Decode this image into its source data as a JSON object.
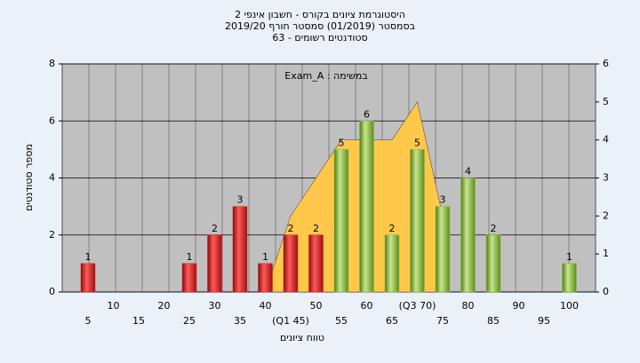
{
  "chart_data": {
    "type": "bar",
    "title": "היסטוגרמת ציונים בקורס - חשבון אינפי 2",
    "subtitle": [
      "בסמסטר (01/2019) סמסטר חורף 2019/20",
      "סטודנטים רשומים - 63"
    ],
    "annotation": "במשימה : Exam_A",
    "y_label": "מספר סטודנטים",
    "x_label": "טווח ציונים",
    "categories": [
      "5",
      "10",
      "15",
      "20",
      "25",
      "30",
      "35",
      "40",
      "(Q1 45)",
      "50",
      "55",
      "60",
      "65",
      "(Q3 70)",
      "75",
      "80",
      "85",
      "90",
      "95",
      "100"
    ],
    "series": [
      {
        "color": "#d42020",
        "values": [
          1,
          0,
          0,
          0,
          1,
          2,
          3,
          1,
          2,
          2,
          null,
          null,
          null,
          null,
          null,
          null,
          null,
          null,
          null,
          null
        ]
      },
      {
        "color": "#8dbd3c",
        "values": [
          null,
          null,
          null,
          null,
          null,
          null,
          null,
          null,
          null,
          null,
          5,
          6,
          2,
          5,
          3,
          4,
          2,
          0,
          0,
          1
        ]
      },
      {
        "type": "area",
        "axis": "y2",
        "color": "#ffc84a",
        "values": [
          null,
          null,
          null,
          null,
          null,
          null,
          null,
          0,
          2,
          3,
          4,
          4,
          4,
          5,
          2,
          null,
          null,
          null,
          null,
          null
        ]
      }
    ],
    "ylim": [
      0,
      8
    ],
    "yticks": [
      0,
      2,
      4,
      6,
      8
    ],
    "y2lim": [
      0,
      6
    ],
    "y2ticks": [
      0,
      1,
      2,
      3,
      4,
      5,
      6
    ],
    "grid": true
  }
}
